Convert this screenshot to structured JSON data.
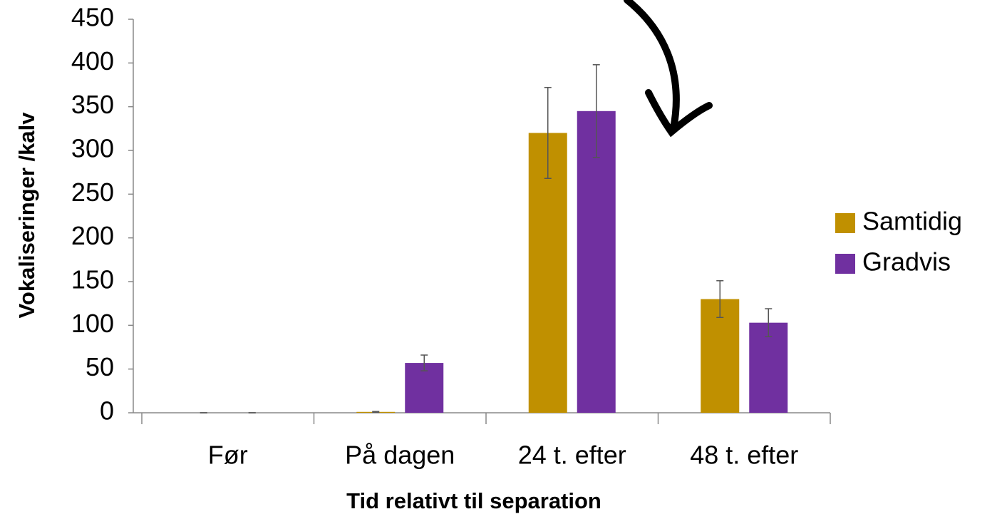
{
  "chart_data": {
    "type": "bar",
    "xlabel": "Tid relativt til separation",
    "ylabel": "Vokaliseringer /kalv",
    "categories": [
      "Før",
      "På dagen",
      "24 t. efter",
      "48 t. efter"
    ],
    "series": [
      {
        "name": "Samtidig",
        "color": "#c09000",
        "values": [
          0,
          1,
          320,
          130
        ],
        "errors": [
          0,
          0.5,
          52,
          21
        ]
      },
      {
        "name": "Gradvis",
        "color": "#7030a0",
        "values": [
          0,
          57,
          345,
          103
        ],
        "errors": [
          0,
          9,
          53,
          16
        ]
      }
    ],
    "ylim": [
      0,
      450
    ],
    "yticks": [
      0,
      50,
      100,
      150,
      200,
      250,
      300,
      350,
      400,
      450
    ],
    "legend": "right"
  }
}
